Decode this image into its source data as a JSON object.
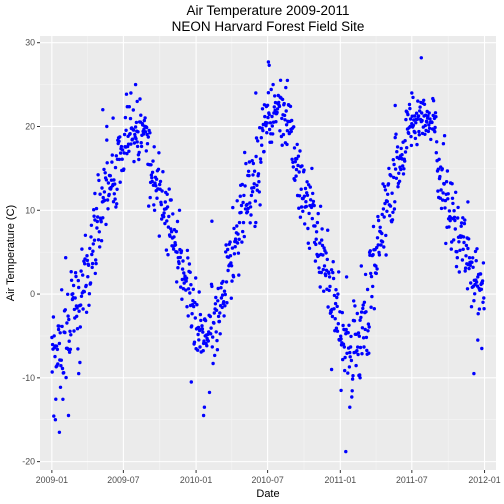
{
  "chart_data": {
    "type": "scatter",
    "title": [
      "Air Temperature 2009-2011",
      "NEON Harvard Forest Field Site"
    ],
    "xlabel": "Date",
    "ylabel": "Air Temperature (C)",
    "x_ticks": [
      "2009-01",
      "2009-07",
      "2010-01",
      "2010-07",
      "2011-01",
      "2011-07",
      "2012-01"
    ],
    "y_ticks": [
      -20,
      -10,
      0,
      10,
      20,
      30
    ],
    "xlim": [
      "2008-12-02",
      "2012-01-30"
    ],
    "ylim": [
      -21,
      30.8
    ],
    "grid": true,
    "legend": "none",
    "colors": {
      "points": "#0000ff",
      "panel": "#ebebeb",
      "grid_major": "#ffffff",
      "grid_minor": "#f5f5f5"
    },
    "series": [
      {
        "segments": [
          {
            "start": "2009-01-01",
            "end": "2009-03-15",
            "anchors": [
              [
                0,
                -8
              ],
              [
                30,
                -6
              ],
              [
                60,
                -3
              ],
              [
                75,
                -2
              ]
            ],
            "spread": 7
          },
          {
            "start": "2009-03-16",
            "end": "2009-06-15",
            "anchors": [
              [
                0,
                0
              ],
              [
                30,
                6
              ],
              [
                60,
                12
              ],
              [
                91,
                16
              ]
            ],
            "spread": 6
          },
          {
            "start": "2009-06-16",
            "end": "2009-08-31",
            "anchors": [
              [
                0,
                16
              ],
              [
                30,
                18
              ],
              [
                76,
                20
              ]
            ],
            "spread": 4
          },
          {
            "start": "2009-09-01",
            "end": "2009-12-31",
            "anchors": [
              [
                0,
                16
              ],
              [
                40,
                10
              ],
              [
                80,
                4
              ],
              [
                121,
                -3
              ]
            ],
            "spread": 5
          },
          {
            "start": "2010-01-01",
            "end": "2010-03-15",
            "anchors": [
              [
                0,
                -4
              ],
              [
                30,
                -5
              ],
              [
                73,
                0
              ]
            ],
            "spread": 6
          },
          {
            "start": "2010-03-16",
            "end": "2010-06-15",
            "anchors": [
              [
                0,
                3
              ],
              [
                45,
                10
              ],
              [
                91,
                17
              ]
            ],
            "spread": 6
          },
          {
            "start": "2010-06-16",
            "end": "2010-08-31",
            "anchors": [
              [
                0,
                20
              ],
              [
                40,
                22
              ],
              [
                76,
                20
              ]
            ],
            "spread": 4
          },
          {
            "start": "2010-09-01",
            "end": "2010-12-31",
            "anchors": [
              [
                0,
                17
              ],
              [
                40,
                10
              ],
              [
                80,
                4
              ],
              [
                121,
                -3
              ]
            ],
            "spread": 5
          },
          {
            "start": "2011-01-01",
            "end": "2011-03-15",
            "anchors": [
              [
                0,
                -5
              ],
              [
                30,
                -6
              ],
              [
                73,
                -2
              ]
            ],
            "spread": 6
          },
          {
            "start": "2011-03-16",
            "end": "2011-06-15",
            "anchors": [
              [
                0,
                2
              ],
              [
                45,
                10
              ],
              [
                91,
                18
              ]
            ],
            "spread": 6
          },
          {
            "start": "2011-06-16",
            "end": "2011-08-31",
            "anchors": [
              [
                0,
                20
              ],
              [
                40,
                21
              ],
              [
                76,
                20
              ]
            ],
            "spread": 3
          },
          {
            "start": "2011-09-01",
            "end": "2011-12-31",
            "anchors": [
              [
                0,
                16
              ],
              [
                40,
                9
              ],
              [
                80,
                4
              ],
              [
                121,
                1
              ]
            ],
            "spread": 5
          }
        ],
        "points": [
          [
            "2009-01-20",
            -16.5
          ],
          [
            "2009-01-10",
            -15
          ],
          [
            "2009-02-12",
            -14.5
          ],
          [
            "2009-03-10",
            -9.5
          ],
          [
            "2009-04-20",
            12
          ],
          [
            "2009-05-10",
            22
          ],
          [
            "2009-05-20",
            20
          ],
          [
            "2009-06-05",
            21
          ],
          [
            "2009-07-20",
            24
          ],
          [
            "2009-08-01",
            25
          ],
          [
            "2009-08-05",
            23
          ],
          [
            "2009-12-20",
            -10.5
          ],
          [
            "2010-01-20",
            -14.5
          ],
          [
            "2010-01-22",
            -13.5
          ],
          [
            "2010-02-10",
            8.7
          ],
          [
            "2010-06-01",
            24
          ],
          [
            "2010-07-03",
            27.7
          ],
          [
            "2010-07-05",
            27.3
          ],
          [
            "2010-08-20",
            25.5
          ],
          [
            "2010-12-10",
            -9
          ],
          [
            "2011-01-03",
            -11.5
          ],
          [
            "2011-01-15",
            -18.8
          ],
          [
            "2011-01-25",
            -13.5
          ],
          [
            "2011-02-20",
            -10
          ],
          [
            "2011-05-20",
            22.5
          ],
          [
            "2011-07-25",
            28.2
          ],
          [
            "2011-07-01",
            24
          ],
          [
            "2011-11-20",
            11
          ],
          [
            "2011-12-05",
            -9.5
          ],
          [
            "2011-12-15",
            -5.5
          ],
          [
            "2011-12-25",
            -6.5
          ]
        ]
      }
    ]
  }
}
